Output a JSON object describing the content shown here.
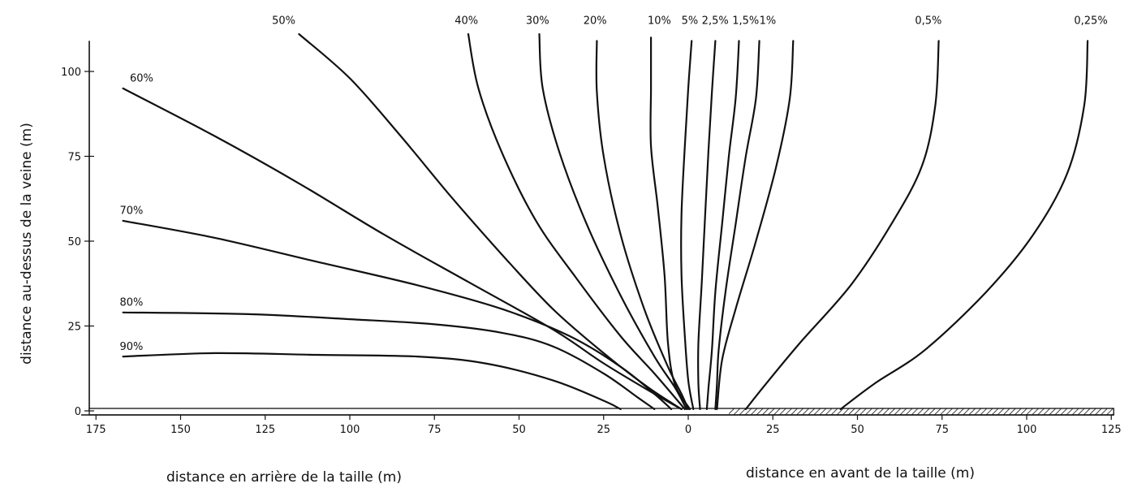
{
  "chart_data": {
    "type": "line",
    "xlabel_left": "distance en arrière  de la taille  (m)",
    "xlabel_right": "distance en avant de la taille  (m)",
    "ylabel": "distance au-dessus de la veine  (m)",
    "x_tick_labels": [
      "175",
      "150",
      "125",
      "100",
      "75",
      "50",
      "25",
      "0",
      "25",
      "50",
      "75",
      "100",
      "125"
    ],
    "x_tick_values": [
      -175,
      -150,
      -125,
      -100,
      -75,
      -50,
      -25,
      0,
      25,
      50,
      75,
      100,
      125
    ],
    "y_tick_labels": [
      "0",
      "25",
      "50",
      "75",
      "100"
    ],
    "y_tick_values": [
      0,
      25,
      50,
      75,
      100
    ],
    "xlim": [
      -175,
      125
    ],
    "ylim": [
      0,
      110
    ],
    "grid": false,
    "series": [
      {
        "name": "90%",
        "points": [
          [
            -167,
            16
          ],
          [
            -140,
            17
          ],
          [
            -110,
            16.5
          ],
          [
            -80,
            16
          ],
          [
            -60,
            14
          ],
          [
            -40,
            9
          ],
          [
            -25,
            3
          ],
          [
            -20,
            0.5
          ]
        ]
      },
      {
        "name": "80%",
        "points": [
          [
            -167,
            29
          ],
          [
            -130,
            28.5
          ],
          [
            -100,
            27
          ],
          [
            -75,
            25.5
          ],
          [
            -55,
            23
          ],
          [
            -40,
            19
          ],
          [
            -25,
            11
          ],
          [
            -15,
            4
          ],
          [
            -10,
            0.5
          ]
        ]
      },
      {
        "name": "70%",
        "points": [
          [
            -167,
            56
          ],
          [
            -140,
            51
          ],
          [
            -110,
            44
          ],
          [
            -80,
            37
          ],
          [
            -55,
            30
          ],
          [
            -35,
            22
          ],
          [
            -20,
            13
          ],
          [
            -10,
            5
          ],
          [
            -5,
            0.5
          ]
        ]
      },
      {
        "name": "60%",
        "points": [
          [
            -167,
            95
          ],
          [
            -140,
            81
          ],
          [
            -115,
            67
          ],
          [
            -90,
            52
          ],
          [
            -65,
            38
          ],
          [
            -40,
            24
          ],
          [
            -25,
            14
          ],
          [
            -10,
            5
          ],
          [
            -2,
            0.5
          ]
        ]
      },
      {
        "name": "50%",
        "points": [
          [
            -115,
            111
          ],
          [
            -100,
            98
          ],
          [
            -85,
            81
          ],
          [
            -70,
            63
          ],
          [
            -55,
            46
          ],
          [
            -40,
            30
          ],
          [
            -25,
            17
          ],
          [
            -12,
            7
          ],
          [
            -2,
            0.5
          ]
        ]
      },
      {
        "name": "40%",
        "points": [
          [
            -65,
            111
          ],
          [
            -62,
            95
          ],
          [
            -55,
            76
          ],
          [
            -45,
            56
          ],
          [
            -33,
            39
          ],
          [
            -20,
            22
          ],
          [
            -10,
            11
          ],
          [
            -1,
            0.5
          ]
        ]
      },
      {
        "name": "30%",
        "points": [
          [
            -44,
            111
          ],
          [
            -43,
            95
          ],
          [
            -38,
            76
          ],
          [
            -30,
            55
          ],
          [
            -20,
            34
          ],
          [
            -10,
            16
          ],
          [
            -4,
            7
          ],
          [
            -0.5,
            0.5
          ]
        ]
      },
      {
        "name": "20%",
        "points": [
          [
            -27,
            109
          ],
          [
            -27,
            94
          ],
          [
            -25,
            75
          ],
          [
            -20,
            52
          ],
          [
            -13,
            30
          ],
          [
            -6,
            13
          ],
          [
            -2,
            5
          ],
          [
            0,
            0.5
          ]
        ]
      },
      {
        "name": "10%",
        "points": [
          [
            -11,
            110
          ],
          [
            -11,
            95
          ],
          [
            -11,
            78
          ],
          [
            -9,
            60
          ],
          [
            -7,
            40
          ],
          [
            -6,
            20
          ],
          [
            -4,
            8
          ],
          [
            0.5,
            0.5
          ]
        ]
      },
      {
        "name": "5%",
        "points": [
          [
            1,
            109
          ],
          [
            0,
            95
          ],
          [
            -1,
            78
          ],
          [
            -2,
            58
          ],
          [
            -2,
            40
          ],
          [
            -1,
            22
          ],
          [
            0,
            9
          ],
          [
            1.5,
            0.5
          ]
        ]
      },
      {
        "name": "2,5%",
        "points": [
          [
            8,
            109
          ],
          [
            7,
            94
          ],
          [
            6,
            77
          ],
          [
            5,
            58
          ],
          [
            4,
            38
          ],
          [
            3,
            20
          ],
          [
            3,
            8
          ],
          [
            3.5,
            0.5
          ]
        ]
      },
      {
        "name": "1,5%",
        "points": [
          [
            15,
            109
          ],
          [
            14,
            92
          ],
          [
            12,
            75
          ],
          [
            10,
            55
          ],
          [
            8,
            35
          ],
          [
            7,
            18
          ],
          [
            6,
            7
          ],
          [
            5.5,
            0.5
          ]
        ]
      },
      {
        "name": "1%",
        "points": [
          [
            21,
            109
          ],
          [
            20,
            92
          ],
          [
            17,
            75
          ],
          [
            14,
            55
          ],
          [
            11,
            35
          ],
          [
            9,
            18
          ],
          [
            8.5,
            8
          ],
          [
            8,
            0.5
          ]
        ]
      },
      {
        "name": "0,5%",
        "points": [
          [
            31,
            109
          ],
          [
            30,
            92
          ],
          [
            26,
            72
          ],
          [
            20,
            50
          ],
          [
            14,
            30
          ],
          [
            10,
            15
          ],
          [
            8.5,
            0.5
          ]
        ]
      },
      {
        "name": "0,5%",
        "points": [
          [
            74,
            109
          ],
          [
            73,
            90
          ],
          [
            69,
            72
          ],
          [
            60,
            55
          ],
          [
            48,
            37
          ],
          [
            33,
            20
          ],
          [
            23,
            8
          ],
          [
            17,
            0.5
          ]
        ]
      },
      {
        "name": "0,25%",
        "points": [
          [
            118,
            109
          ],
          [
            117,
            90
          ],
          [
            112,
            70
          ],
          [
            102,
            52
          ],
          [
            88,
            35
          ],
          [
            70,
            18
          ],
          [
            55,
            8
          ],
          [
            45,
            0.5
          ]
        ]
      }
    ],
    "curve_labels": [
      {
        "text": "90%",
        "x": -168,
        "y": 18
      },
      {
        "text": "80%",
        "x": -168,
        "y": 31
      },
      {
        "text": "70%",
        "x": -168,
        "y": 58
      },
      {
        "text": "60%",
        "x": -165,
        "y": 97
      },
      {
        "text": "50%",
        "x": -123,
        "y": 114
      },
      {
        "text": "40%",
        "x": -69,
        "y": 114
      },
      {
        "text": "30%",
        "x": -48,
        "y": 114
      },
      {
        "text": "20%",
        "x": -31,
        "y": 114
      },
      {
        "text": "10%",
        "x": -12,
        "y": 114
      },
      {
        "text": "5%",
        "x": -2,
        "y": 114
      },
      {
        "text": "2,5%",
        "x": 4,
        "y": 114
      },
      {
        "text": "1,5%",
        "x": 13,
        "y": 114
      },
      {
        "text": "1%",
        "x": 21,
        "y": 114
      },
      {
        "text": "0,5%",
        "x": 67,
        "y": 114
      },
      {
        "text": "0,25%",
        "x": 114,
        "y": 114
      }
    ],
    "seam_hatched_from_x": 12
  },
  "colors": {
    "ink": "#111111",
    "background": "#ffffff"
  }
}
